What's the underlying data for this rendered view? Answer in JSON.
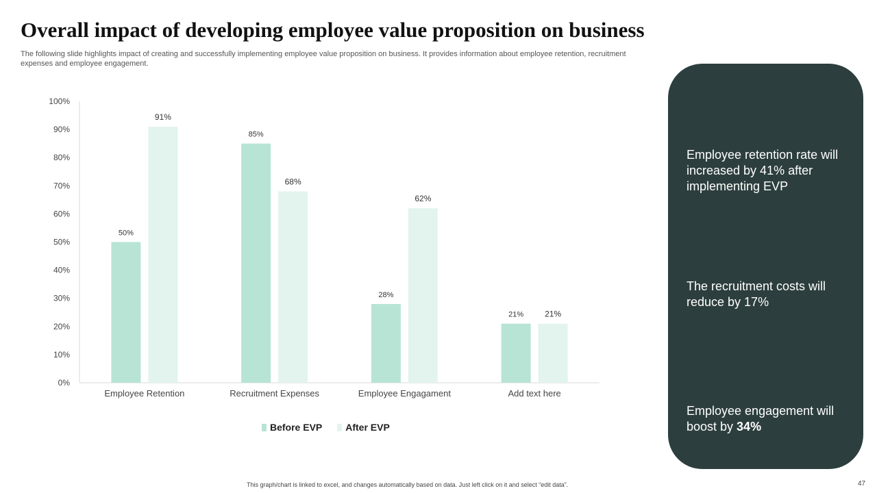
{
  "slide": {
    "title": "Overall impact of developing employee value proposition on business",
    "subtitle": "The following slide highlights impact of creating and successfully implementing employee value proposition on business. It provides information about employee retention, recruitment expenses and employee engagement.",
    "footer_note": "This graph/chart is linked to excel, and changes automatically based on data. Just left click on it and select “edit data”.",
    "page_number": "47"
  },
  "chart_data": {
    "type": "bar",
    "title": "",
    "categories": [
      "Employee Retention",
      "Recruitment Expenses",
      "Employee Engagament",
      "Add text here"
    ],
    "series": [
      {
        "name": "Before EVP",
        "values": [
          50,
          85,
          28,
          21
        ],
        "color": "#b7e4d5"
      },
      {
        "name": "After EVP",
        "values": [
          91,
          68,
          62,
          21
        ],
        "color": "#e2f4ed"
      }
    ],
    "value_labels": [
      [
        "50%",
        "85%",
        "28%",
        "21%"
      ],
      [
        "91%",
        "68%",
        "62%",
        "21%"
      ]
    ],
    "ylim": [
      0,
      100
    ],
    "yticks": [
      0,
      10,
      20,
      30,
      40,
      50,
      60,
      70,
      80,
      90,
      100
    ],
    "ytick_labels": [
      "0%",
      "10%",
      "20%",
      "30%",
      "40%",
      "50%",
      "60%",
      "70%",
      "80%",
      "90%",
      "100%"
    ],
    "xlabel": "",
    "ylabel": "",
    "grid": false,
    "legend_position": "bottom"
  },
  "insights": {
    "background_color": "#2c3e3d",
    "items": [
      {
        "text": "Employee retention rate will increased by 41% after implementing EVP"
      },
      {
        "text": "The recruitment costs will reduce by 17%"
      },
      {
        "text_prefix": "Employee engagement will boost by ",
        "highlight": "34%"
      }
    ]
  }
}
